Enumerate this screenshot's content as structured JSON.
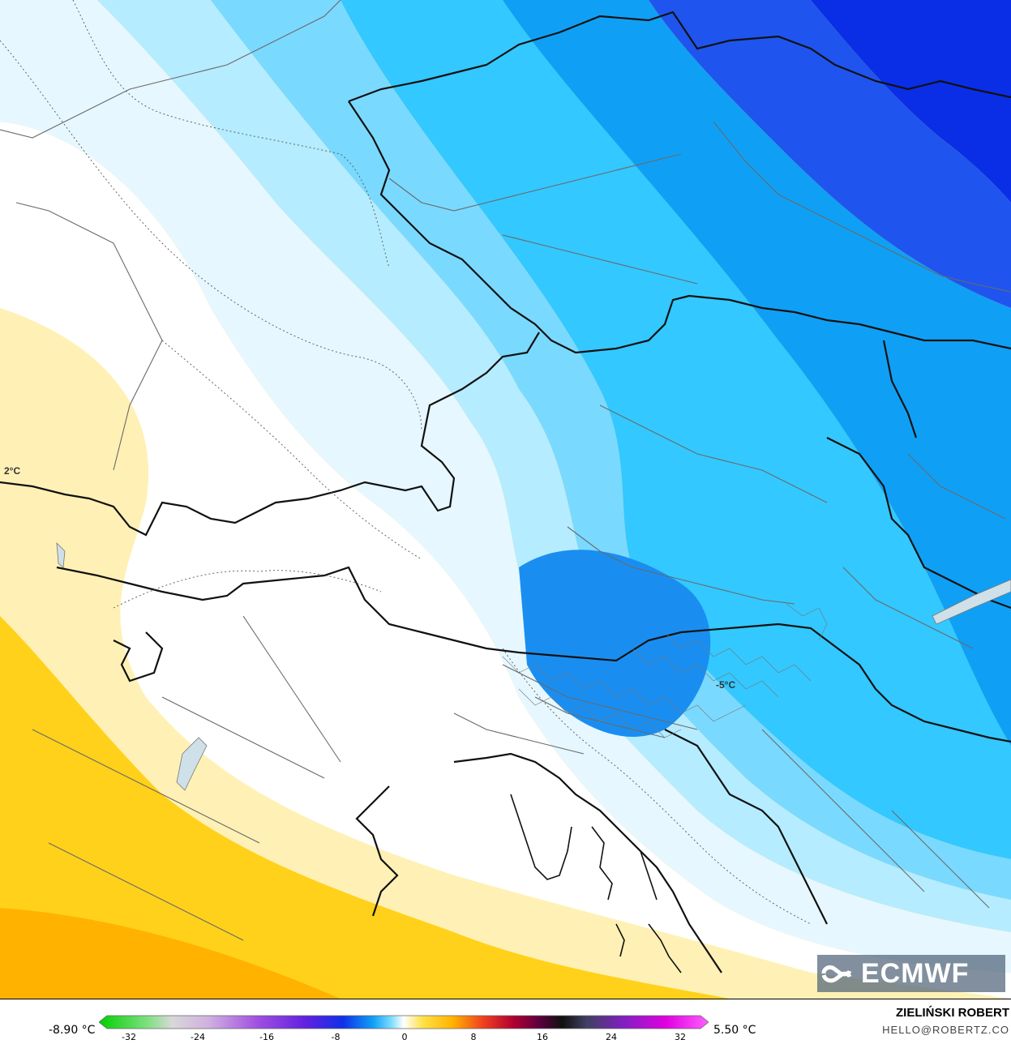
{
  "map": {
    "labels": [
      {
        "id": "label-west",
        "text": "2°C"
      },
      {
        "id": "label-east",
        "text": "-5°C"
      }
    ]
  },
  "legend": {
    "min_label": "-8.90 °C",
    "max_label": "5.50 °C",
    "ticks": [
      "-32",
      "-24",
      "-16",
      "-8",
      "0",
      "8",
      "16",
      "24",
      "32"
    ]
  },
  "branding": {
    "logo_text": "ECMWF",
    "author": "ZIELIŃSKI ROBERT",
    "email": "HELLO@ROBERTZ.CO"
  },
  "colors": {
    "deep_blue": "#0a2ee6",
    "blue": "#1f55ee",
    "mid_blue": "#0fa0f5",
    "sky_blue": "#33c8ff",
    "light_cyan": "#7ad9ff",
    "pale_cyan": "#b5ecff",
    "ice": "#e6f7ff",
    "white": "#ffffff",
    "pale_yellow": "#fff1b5",
    "yellow": "#ffe24a",
    "gold": "#ffd11a",
    "orange": "#ffb300"
  }
}
